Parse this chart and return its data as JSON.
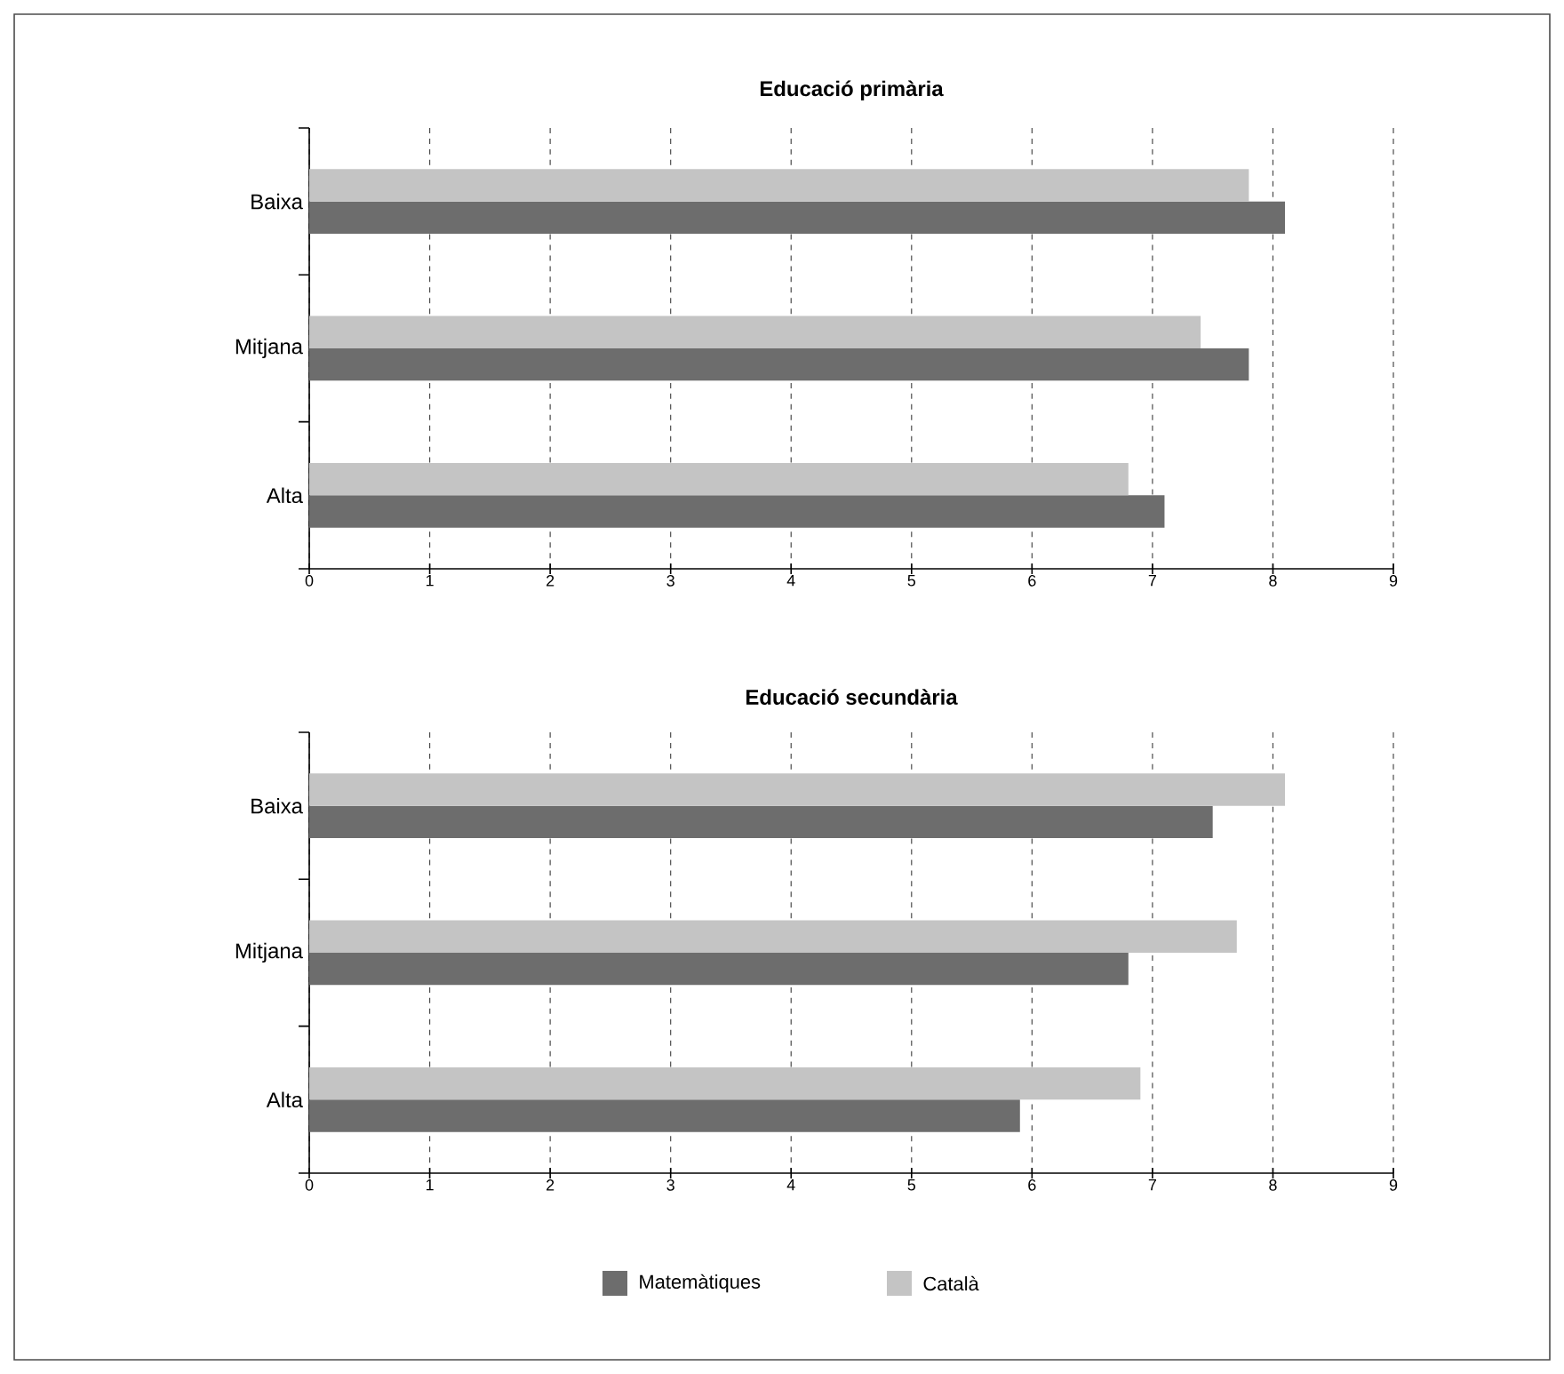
{
  "chart_data": [
    {
      "type": "bar",
      "orientation": "horizontal",
      "title": "Educació primària",
      "categories": [
        "Baixa",
        "Mitjana",
        "Alta"
      ],
      "series": [
        {
          "color": "#6d6d6d",
          "values": [
            8.1,
            7.8,
            7.1
          ]
        },
        {
          "color": "#c4c4c4",
          "values": [
            7.8,
            7.4,
            6.8
          ]
        }
      ],
      "xlim": [
        0,
        9
      ],
      "xticks": [
        0,
        1,
        2,
        3,
        4,
        5,
        6,
        7,
        8,
        9
      ],
      "grid": "x"
    },
    {
      "type": "bar",
      "orientation": "horizontal",
      "title": "Educació secundària",
      "categories": [
        "Baixa",
        "Mitjana",
        "Alta"
      ],
      "series": [
        {
          "name": "Matemàtiques",
          "color": "#6d6d6d",
          "values": [
            7.5,
            6.8,
            5.9
          ]
        },
        {
          "name": "Català",
          "color": "#c4c4c4",
          "values": [
            8.1,
            7.7,
            6.9
          ]
        }
      ],
      "xlim": [
        0,
        9
      ],
      "xticks": [
        0,
        1,
        2,
        3,
        4,
        5,
        6,
        7,
        8,
        9
      ],
      "grid": "x",
      "legend": "bottom"
    }
  ]
}
